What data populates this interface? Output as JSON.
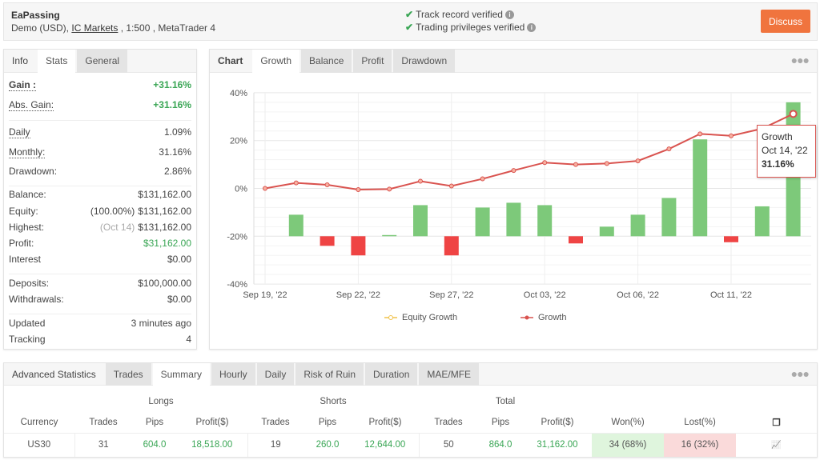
{
  "header": {
    "title": "EaPassing",
    "account_type": "Demo (USD),",
    "broker": "IC Markets",
    "leverage": " , 1:500 , MetaTrader 4",
    "verified": [
      {
        "label": "Track record verified"
      },
      {
        "label": "Trading privileges verified"
      }
    ],
    "discuss_label": "Discuss"
  },
  "left_panel": {
    "tabs": [
      "Info",
      "Stats",
      "General"
    ],
    "active_tab": "Stats",
    "rows": [
      {
        "label": "Gain :",
        "value": "+31.16%"
      },
      {
        "label": "Abs. Gain:",
        "value": "+31.16%"
      },
      {
        "label": "Daily",
        "value": "1.09%"
      },
      {
        "label": "Monthly:",
        "value": "31.16%"
      },
      {
        "label": "Drawdown:",
        "value": "2.86%"
      },
      {
        "label": "Balance:",
        "value": "$131,162.00"
      },
      {
        "label": "Equity:",
        "note": "(100.00%)",
        "value": "$131,162.00"
      },
      {
        "label": "Highest:",
        "note": "(Oct 14)",
        "value": "$131,162.00"
      },
      {
        "label": "Profit:",
        "value": "$31,162.00"
      },
      {
        "label": "Interest",
        "value": "$0.00"
      },
      {
        "label": "Deposits:",
        "value": "$100,000.00"
      },
      {
        "label": "Withdrawals:",
        "value": "$0.00"
      },
      {
        "label": "Updated",
        "value": "3 minutes ago"
      },
      {
        "label": "Tracking",
        "value": "4"
      }
    ]
  },
  "chart_panel": {
    "tabs": [
      "Chart",
      "Growth",
      "Balance",
      "Profit",
      "Drawdown"
    ],
    "active_tab": "Growth",
    "tooltip": {
      "series": "Growth",
      "date": "Oct 14, '22",
      "value": "31.16%"
    },
    "legend": [
      "Equity Growth",
      "Growth"
    ]
  },
  "chart_data": {
    "type": "line",
    "title": "",
    "xlabel": "",
    "ylabel": "",
    "ylim": [
      -40,
      40
    ],
    "yticks": [
      "40%",
      "20%",
      "0%",
      "-20%",
      "-40%"
    ],
    "ytick_values": [
      40,
      20,
      0,
      -20,
      -40
    ],
    "xtick_labels": [
      {
        "index": 0,
        "label": "Sep 19, '22"
      },
      {
        "index": 3,
        "label": "Sep 22, '22"
      },
      {
        "index": 6,
        "label": "Sep 27, '22"
      },
      {
        "index": 9,
        "label": "Oct 03, '22"
      },
      {
        "index": 12,
        "label": "Oct 06, '22"
      },
      {
        "index": 15,
        "label": "Oct 11, '22"
      }
    ],
    "grid": true,
    "legend_position": "bottom",
    "series": [
      {
        "name": "Growth",
        "color": "#d9534f",
        "values": [
          0,
          2.3,
          1.5,
          -0.5,
          -0.3,
          3,
          1,
          4,
          7.5,
          10.8,
          10,
          10.4,
          11.5,
          16.5,
          22.8,
          22,
          25,
          31.16
        ]
      }
    ],
    "bars": {
      "baseline": -20,
      "positive_color": "#7dc97a",
      "negative_color": "#ef4444",
      "values": [
        null,
        9,
        -4,
        -8,
        0.5,
        13,
        -8,
        12,
        14,
        13,
        -3,
        4,
        9,
        16,
        40.5,
        -2.5,
        12.5,
        56
      ]
    }
  },
  "advanced": {
    "tabs": [
      "Advanced Statistics",
      "Trades",
      "Summary",
      "Hourly",
      "Daily",
      "Risk of Ruin",
      "Duration",
      "MAE/MFE"
    ],
    "active_tab": "Summary",
    "groups": [
      "Longs",
      "Shorts",
      "Total"
    ],
    "columns": [
      "Currency",
      "Trades",
      "Pips",
      "Profit($)",
      "Trades",
      "Pips",
      "Profit($)",
      "Trades",
      "Pips",
      "Profit($)",
      "Won(%)",
      "Lost(%)"
    ],
    "rows": [
      [
        "US30",
        "31",
        "604.0",
        "18,518.00",
        "19",
        "260.0",
        "12,644.00",
        "50",
        "864.0",
        "31,162.00",
        "34 (68%)",
        "16 (32%)"
      ]
    ],
    "won_bg": "#dff5dd",
    "lost_bg": "#fadada"
  }
}
